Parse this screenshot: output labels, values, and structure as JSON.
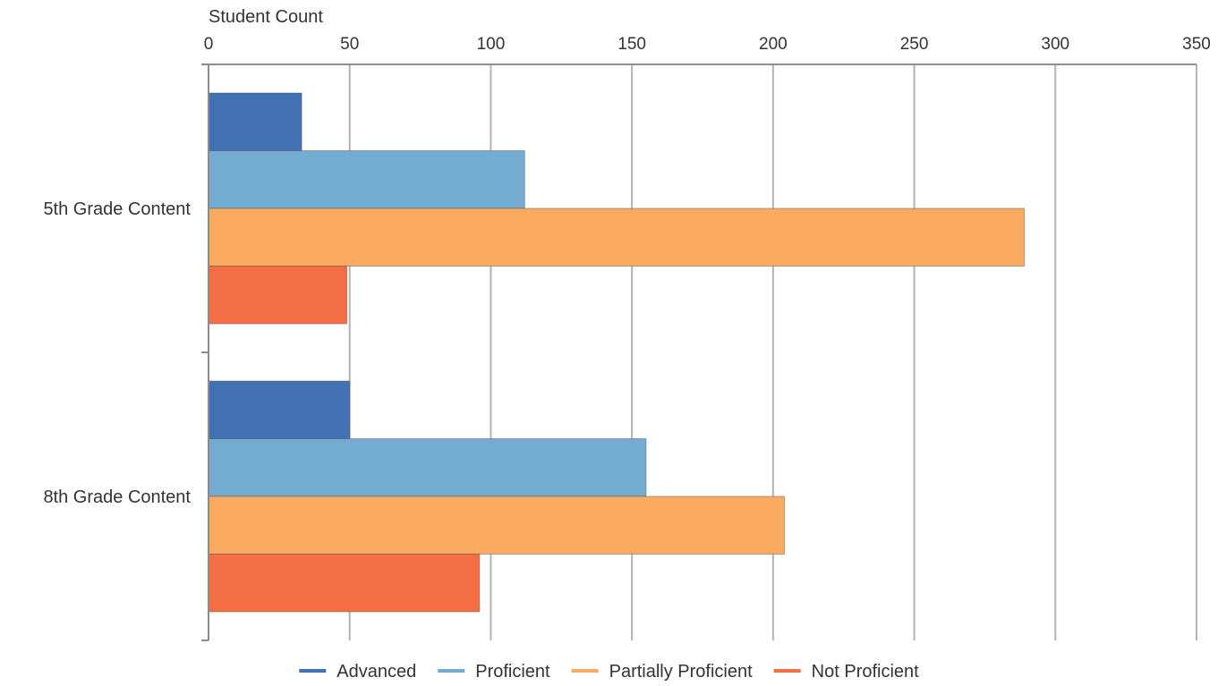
{
  "chart_data": {
    "type": "bar",
    "orientation": "horizontal",
    "xlabel": "Student Count",
    "xlim": [
      0,
      350
    ],
    "x_ticks": [
      0,
      50,
      100,
      150,
      200,
      250,
      300,
      350
    ],
    "x_axis_position": "top",
    "grid": true,
    "legend_position": "bottom",
    "categories": [
      "5th Grade Content",
      "8th Grade Content"
    ],
    "series": [
      {
        "name": "Advanced",
        "color": "#4372b4",
        "values": [
          33,
          50
        ]
      },
      {
        "name": "Proficient",
        "color": "#73abd1",
        "values": [
          112,
          155
        ]
      },
      {
        "name": "Partially Proficient",
        "color": "#fbab61",
        "values": [
          289,
          204
        ]
      },
      {
        "name": "Not Proficient",
        "color": "#f36f43",
        "values": [
          49,
          96
        ]
      }
    ]
  }
}
